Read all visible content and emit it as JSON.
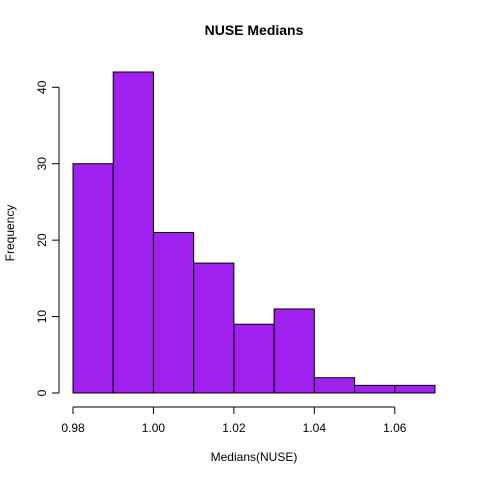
{
  "chart_data": {
    "type": "histogram",
    "title": "NUSE Medians",
    "xlabel": "Medians(NUSE)",
    "ylabel": "Frequency",
    "bins": [
      {
        "start": 0.98,
        "end": 0.99,
        "count": 30
      },
      {
        "start": 0.99,
        "end": 1.0,
        "count": 42
      },
      {
        "start": 1.0,
        "end": 1.01,
        "count": 21
      },
      {
        "start": 1.01,
        "end": 1.02,
        "count": 17
      },
      {
        "start": 1.02,
        "end": 1.03,
        "count": 9
      },
      {
        "start": 1.03,
        "end": 1.04,
        "count": 11
      },
      {
        "start": 1.04,
        "end": 1.05,
        "count": 2
      },
      {
        "start": 1.05,
        "end": 1.06,
        "count": 1
      },
      {
        "start": 1.06,
        "end": 1.07,
        "count": 1
      }
    ],
    "xticks": [
      "0.98",
      "1.00",
      "1.02",
      "1.04",
      "1.06"
    ],
    "yticks": [
      "0",
      "10",
      "20",
      "30",
      "40"
    ],
    "xlim": [
      0.98,
      1.07
    ],
    "ylim": [
      0,
      42
    ],
    "bar_color": "#a020f0",
    "grid": false,
    "legend": "none"
  }
}
